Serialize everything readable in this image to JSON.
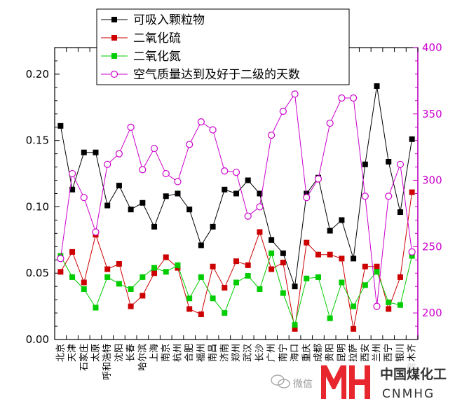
{
  "chart_data": {
    "type": "line",
    "categories": [
      "北京",
      "天津",
      "石家庄",
      "太原",
      "呼和浩特",
      "沈阳",
      "长春",
      "哈尔滨",
      "上海",
      "南京",
      "杭州",
      "合肥",
      "福州",
      "南昌",
      "济南",
      "郑州",
      "武汉",
      "长沙",
      "广州",
      "南宁",
      "海口",
      "重庆",
      "成都",
      "贵阳",
      "昆明",
      "拉萨",
      "西安",
      "兰州",
      "西宁",
      "银川",
      "乌鲁木齐"
    ],
    "series": [
      {
        "name": "可吸入颗粒物",
        "axis": "left",
        "color": "#000000",
        "marker": "square-filled",
        "values": [
          0.161,
          0.113,
          0.141,
          0.141,
          0.101,
          0.116,
          0.098,
          0.103,
          0.085,
          0.108,
          0.11,
          0.098,
          0.071,
          0.085,
          0.113,
          0.11,
          0.12,
          0.11,
          0.075,
          0.065,
          0.04,
          0.11,
          0.122,
          0.082,
          0.09,
          0.061,
          0.132,
          0.191,
          0.134,
          0.096,
          0.151
        ]
      },
      {
        "name": "二氧化硫",
        "axis": "left",
        "color": "#cc0000",
        "marker": "square-filled",
        "values": [
          0.051,
          0.066,
          0.043,
          0.079,
          0.053,
          0.057,
          0.025,
          0.033,
          0.05,
          0.062,
          0.054,
          0.023,
          0.019,
          0.055,
          0.039,
          0.059,
          0.056,
          0.081,
          0.053,
          0.058,
          0.008,
          0.073,
          0.064,
          0.064,
          0.061,
          0.008,
          0.055,
          0.055,
          0.023,
          0.047,
          0.111
        ]
      },
      {
        "name": "二氧化氮",
        "axis": "left",
        "color": "#00cc00",
        "marker": "square-filled",
        "values": [
          0.063,
          0.047,
          0.038,
          0.024,
          0.047,
          0.042,
          0.038,
          0.047,
          0.054,
          0.051,
          0.056,
          0.031,
          0.047,
          0.031,
          0.02,
          0.043,
          0.048,
          0.038,
          0.065,
          0.035,
          0.011,
          0.046,
          0.047,
          0.016,
          0.043,
          0.025,
          0.041,
          0.051,
          0.028,
          0.026,
          0.063
        ]
      },
      {
        "name": "空气质量达到及好于二级的天数",
        "axis": "right",
        "color": "#cc00cc",
        "marker": "circle-open",
        "values": [
          241,
          305,
          287,
          261,
          312,
          320,
          340,
          308,
          324,
          305,
          299,
          327,
          344,
          338,
          307,
          306,
          273,
          280,
          334,
          352,
          365,
          287,
          301,
          343,
          362,
          362,
          288,
          205,
          288,
          312,
          246
        ]
      }
    ],
    "y_left": {
      "range": [
        0,
        0.22
      ],
      "ticks": [
        "0.00",
        "0.05",
        "0.10",
        "0.15",
        "0.20"
      ]
    },
    "y_right": {
      "range": [
        180,
        400
      ],
      "ticks": [
        "200",
        "250",
        "300",
        "350",
        "400"
      ],
      "color": "#cc00cc"
    },
    "legend_position": "top-center",
    "grid": false
  },
  "watermark": {
    "wechat": "微信",
    "brand_cn": "中国煤化工",
    "brand_en": "CNMHG"
  }
}
